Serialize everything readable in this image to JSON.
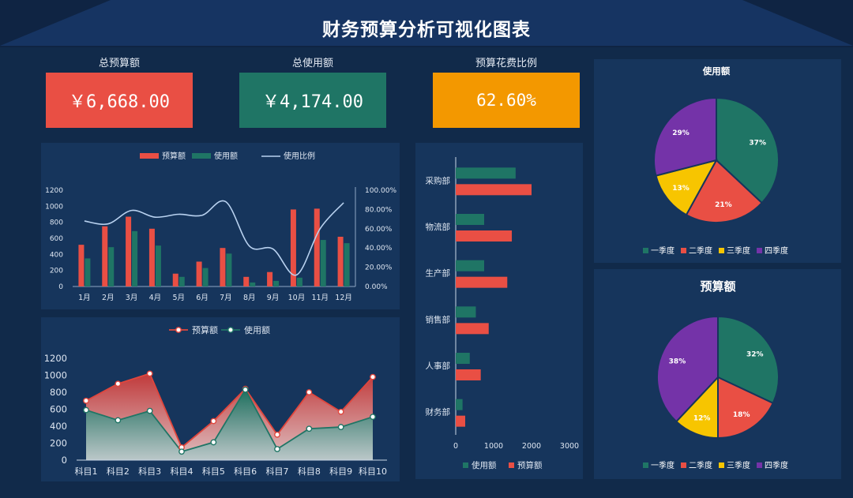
{
  "page": {
    "title": "财务预算分析可视化图表"
  },
  "kpis": [
    {
      "label": "总预算额",
      "value": "￥6,668.00",
      "color": "#e94f44"
    },
    {
      "label": "总使用额",
      "value": "￥4,174.00",
      "color": "#1f7565"
    },
    {
      "label": "预算花费比例",
      "value": "62.60%",
      "color": "#f39800"
    }
  ],
  "colors": {
    "budget": "#e94f44",
    "usage": "#1f7565",
    "ratio_line": "#b9d2f0",
    "q1": "#1f7565",
    "q2": "#e94f44",
    "q3": "#f7c500",
    "q4": "#7433a8",
    "panel": "#16355c",
    "background": "#112a4a"
  },
  "chart_data": [
    {
      "type": "bar",
      "id": "monthly",
      "categories": [
        "1月",
        "2月",
        "3月",
        "4月",
        "5月",
        "6月",
        "7月",
        "8月",
        "9月",
        "10月",
        "11月",
        "12月"
      ],
      "series": [
        {
          "name": "预算额",
          "values": [
            520,
            750,
            870,
            720,
            160,
            310,
            480,
            120,
            180,
            960,
            970,
            620
          ]
        },
        {
          "name": "使用额",
          "values": [
            350,
            490,
            690,
            510,
            120,
            230,
            410,
            50,
            70,
            110,
            580,
            540
          ]
        }
      ],
      "line_series": {
        "name": "使用比例",
        "values": [
          68,
          65,
          79,
          72,
          75,
          74,
          88,
          42,
          39,
          12,
          60,
          87
        ]
      },
      "legend": [
        "预算额",
        "使用额",
        "使用比例"
      ],
      "y_ticks": [
        "0",
        "200",
        "400",
        "600",
        "800",
        "1000",
        "1200"
      ],
      "y2_ticks": [
        "0.00%",
        "20.00%",
        "40.00%",
        "60.00%",
        "80.00%",
        "100.00%"
      ],
      "ylim": [
        0,
        1200
      ],
      "y2lim": [
        0,
        100
      ],
      "legend_position": "top-center",
      "grid": false
    },
    {
      "type": "area",
      "id": "subjects",
      "categories": [
        "科目1",
        "科目2",
        "科目3",
        "科目4",
        "科目5",
        "科目6",
        "科目7",
        "科目8",
        "科目9",
        "科目10"
      ],
      "series": [
        {
          "name": "预算额",
          "values": [
            700,
            900,
            1020,
            150,
            460,
            840,
            300,
            800,
            570,
            980
          ]
        },
        {
          "name": "使用额",
          "values": [
            590,
            470,
            580,
            100,
            210,
            830,
            130,
            370,
            390,
            510
          ]
        }
      ],
      "legend": [
        "预算额",
        "使用额"
      ],
      "y_ticks": [
        "0",
        "200",
        "400",
        "600",
        "800",
        "1000",
        "1200"
      ],
      "ylim": [
        0,
        1200
      ],
      "legend_position": "top-center",
      "grid": false
    },
    {
      "type": "bar",
      "id": "departments",
      "orientation": "horizontal",
      "categories": [
        "采购部",
        "物流部",
        "生产部",
        "销售部",
        "人事部",
        "财务部"
      ],
      "series": [
        {
          "name": "使用额",
          "values": [
            1580,
            750,
            750,
            530,
            370,
            180
          ]
        },
        {
          "name": "预算额",
          "values": [
            2000,
            1480,
            1360,
            870,
            660,
            250
          ]
        }
      ],
      "legend": [
        "使用额",
        "预算额"
      ],
      "x_ticks": [
        "0",
        "1000",
        "2000",
        "3000"
      ],
      "xlim": [
        0,
        3000
      ],
      "legend_position": "bottom-center",
      "grid": false
    },
    {
      "type": "pie",
      "id": "usage_pie",
      "title": "使用额",
      "labels": [
        "一季度",
        "二季度",
        "三季度",
        "四季度"
      ],
      "values": [
        37,
        21,
        13,
        29
      ],
      "value_labels": [
        "37%",
        "21%",
        "13%",
        "29%"
      ],
      "legend_position": "bottom-center"
    },
    {
      "type": "pie",
      "id": "budget_pie",
      "title": "预算额",
      "labels": [
        "一季度",
        "二季度",
        "三季度",
        "四季度"
      ],
      "values": [
        32,
        18,
        12,
        38
      ],
      "value_labels": [
        "32%",
        "18%",
        "12%",
        "38%"
      ],
      "legend_position": "bottom-center"
    }
  ]
}
